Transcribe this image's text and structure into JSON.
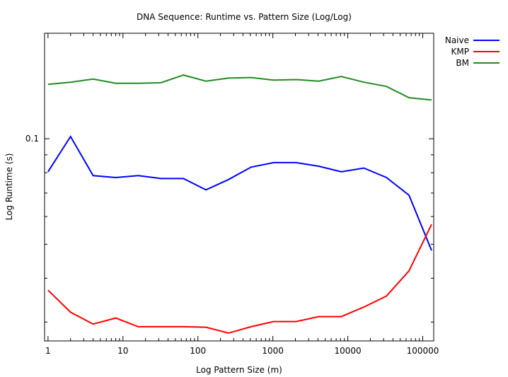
{
  "chart_data": {
    "type": "line",
    "title": "DNA Sequence: Runtime vs. Pattern Size (Log/Log)",
    "xlabel": "Log Pattern Size (m)",
    "ylabel": "Log Runtime (s)",
    "xscale": "log",
    "yscale": "log",
    "xlim": [
      0.9,
      140000
    ],
    "ylim": [
      0.0265,
      0.2
    ],
    "xticks": [
      1,
      10,
      100,
      1000,
      10000,
      100000
    ],
    "xtick_labels": [
      "1",
      "10",
      "100",
      "1000",
      "10000",
      "100000"
    ],
    "yticks": [
      0.1
    ],
    "ytick_labels": [
      "0.1"
    ],
    "grid": false,
    "legend": "top-right",
    "x": [
      1,
      2,
      4,
      8,
      16,
      32,
      64,
      128,
      256,
      512,
      1024,
      2048,
      4096,
      8192,
      16384,
      32768,
      65536,
      131072
    ],
    "series": [
      {
        "name": "Naive",
        "color": "#0000ff",
        "values": [
          0.0805,
          0.1015,
          0.0785,
          0.0775,
          0.0785,
          0.077,
          0.077,
          0.0715,
          0.0765,
          0.083,
          0.0855,
          0.0855,
          0.0835,
          0.0805,
          0.0825,
          0.0775,
          0.069,
          0.048
        ]
      },
      {
        "name": "KMP",
        "color": "#ff0000",
        "values": [
          0.037,
          0.032,
          0.0296,
          0.0308,
          0.0291,
          0.0291,
          0.0291,
          0.029,
          0.0279,
          0.0291,
          0.0301,
          0.0301,
          0.0311,
          0.0311,
          0.0331,
          0.0356,
          0.042,
          0.057
        ]
      },
      {
        "name": "BM",
        "color": "#228b22",
        "values": [
          0.143,
          0.145,
          0.148,
          0.144,
          0.144,
          0.1445,
          0.152,
          0.146,
          0.149,
          0.1495,
          0.147,
          0.1475,
          0.146,
          0.1505,
          0.145,
          0.141,
          0.131,
          0.129
        ]
      }
    ]
  }
}
